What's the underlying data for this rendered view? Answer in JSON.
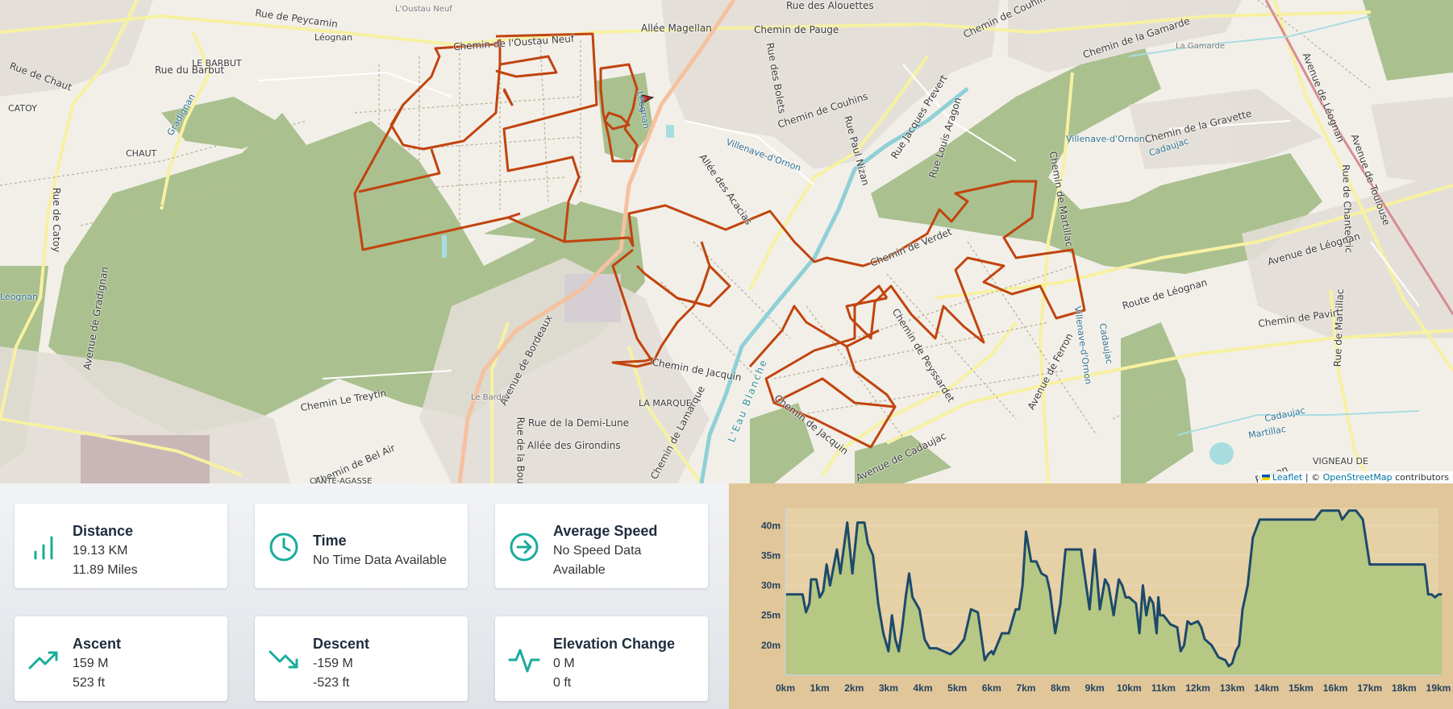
{
  "map": {
    "attribution_leaflet": "Leaflet",
    "attribution_sep": " | © ",
    "attribution_osm": "OpenStreetMap",
    "attribution_tail": " contributors",
    "labels": [
      "Rue de Peycamin",
      "Léognan",
      "Chemin de l'Oustau Neuf",
      "Allée Magellan",
      "Rue des Alouettes",
      "Chemin de Pauge",
      "Chemin de Couhins",
      "Chemin de la Gamarde",
      "La Gamarde",
      "Rue du Barbut",
      "LE BARBUT",
      "Rue de Chaut",
      "CATOY",
      "CHAUT",
      "Gradignan",
      "Rue de Catoy",
      "Rue des Bolets",
      "Chemin de Couhins",
      "Rue Jacques Prevert",
      "Rue Paul Nizan",
      "Rue Louis Aragon",
      "Villenave-d'Ornon",
      "Allée des Acacias",
      "Chemin de Martillac",
      "Villenave-d'Ornon",
      "Chemin de la Gravette",
      "Cadaujac",
      "Avenue de Léognan",
      "Avenue de Toulouse",
      "Rue de Chantecric",
      "Chemin de Verdet",
      "Avenue de Léognan",
      "Route de Léognan",
      "Chemin de Pavin",
      "Rue de Martillac",
      "Avenue de Gradignan",
      "Avenue de Bordeaux",
      "Chemin de Jacquin",
      "Chemin de Peyssardet",
      "Avenue de Ferron",
      "Villenave-d'Ornon",
      "Cadaujac",
      "L'Eau Blanche",
      "Chemin de Jacquin",
      "LA MARQUE",
      "Chemin de Lamarque",
      "Rue de la Demi-Lune",
      "Allée des Girondins",
      "Chemin Le Treytin",
      "Chemin de Bel Air",
      "Avenue de Cadaujac",
      "Cadaujac",
      "Martillac",
      "VIGNEAU DE",
      "Ramon",
      "Léognan",
      "Rue de la Bouh",
      "L'Oustau Neuf",
      "Léognan",
      "Le Barde",
      "CANTE-AGASSE"
    ]
  },
  "stats": [
    {
      "title": "Distance",
      "line1": "19.13 KM",
      "line2": "11.89 Miles",
      "icon": "bar-chart-icon"
    },
    {
      "title": "Time",
      "line1": "No Time Data Available",
      "line2": "",
      "icon": "clock-icon"
    },
    {
      "title": "Average Speed",
      "line1": "No Speed Data",
      "line2": "Available",
      "icon": "arrow-circle-icon"
    },
    {
      "title": "Ascent",
      "line1": "159 M",
      "line2": "523 ft",
      "icon": "trending-up-icon"
    },
    {
      "title": "Descent",
      "line1": "-159 M",
      "line2": "-523 ft",
      "icon": "trending-down-icon"
    },
    {
      "title": "Elevation Change",
      "line1": "0 M",
      "line2": "0 ft",
      "icon": "activity-icon"
    }
  ],
  "colors": {
    "accent": "#1aab9b",
    "route": "#c1440e",
    "elevation_fill": "#b7c784",
    "elevation_line": "#1c4a6b",
    "elevation_bg": "#e0c699"
  },
  "chart_data": {
    "type": "area",
    "title": "",
    "xlabel": "",
    "ylabel": "",
    "xlim": [
      0,
      19
    ],
    "ylim": [
      15,
      43
    ],
    "x_ticks": [
      "0km",
      "1km",
      "2km",
      "3km",
      "4km",
      "5km",
      "6km",
      "7km",
      "8km",
      "9km",
      "10km",
      "11km",
      "12km",
      "13km",
      "14km",
      "15km",
      "16km",
      "17km",
      "18km",
      "19km"
    ],
    "y_ticks": [
      "20m",
      "25m",
      "30m",
      "35m",
      "40m"
    ],
    "grid": true,
    "x": [
      0,
      0.5,
      0.6,
      0.7,
      0.75,
      0.9,
      1.0,
      1.1,
      1.2,
      1.3,
      1.4,
      1.5,
      1.6,
      1.8,
      1.95,
      2.1,
      2.2,
      2.3,
      2.4,
      2.55,
      2.7,
      2.85,
      3.0,
      3.1,
      3.2,
      3.3,
      3.4,
      3.5,
      3.6,
      3.7,
      3.9,
      4.05,
      4.2,
      4.4,
      4.6,
      4.8,
      5.0,
      5.2,
      5.4,
      5.6,
      5.8,
      5.9,
      6.0,
      6.05,
      6.3,
      6.5,
      6.7,
      6.8,
      6.9,
      7.0,
      7.15,
      7.3,
      7.45,
      7.6,
      7.7,
      7.85,
      8.0,
      8.15,
      8.3,
      8.4,
      8.6,
      8.85,
      9.0,
      9.15,
      9.3,
      9.4,
      9.55,
      9.7,
      9.8,
      9.9,
      10.0,
      10.2,
      10.3,
      10.4,
      10.5,
      10.6,
      10.7,
      10.8,
      10.85,
      10.9,
      11.0,
      11.2,
      11.4,
      11.5,
      11.6,
      11.7,
      11.8,
      12.0,
      12.1,
      12.2,
      12.4,
      12.6,
      12.8,
      12.9,
      13.0,
      13.1,
      13.2,
      13.3,
      13.45,
      13.6,
      13.8,
      14.0,
      14.2,
      14.4,
      14.6,
      14.8,
      15.0,
      15.2,
      15.4,
      15.6,
      15.8,
      16.0,
      16.1,
      16.2,
      16.4,
      16.6,
      16.8,
      17.0,
      17.2,
      17.4,
      17.6,
      17.8,
      18.0,
      18.2,
      18.4,
      18.6,
      18.7,
      18.8,
      18.9,
      19.0,
      19.1
    ],
    "y": [
      28.5,
      28.5,
      25.5,
      27,
      31,
      31,
      28,
      29,
      33.5,
      30,
      33,
      36,
      32,
      40.5,
      32,
      40.5,
      40.5,
      40.5,
      37,
      35,
      27,
      22,
      19,
      25,
      21,
      19,
      23,
      28,
      32,
      28,
      26,
      21,
      19.5,
      19.5,
      19,
      18.5,
      19.5,
      21,
      26,
      25.5,
      17.5,
      18.5,
      19,
      18.5,
      22,
      22,
      26,
      26,
      30,
      39,
      34,
      34,
      32,
      31.5,
      29,
      22,
      27,
      36,
      36,
      36,
      36,
      26,
      36,
      26,
      31,
      30,
      25,
      31,
      30,
      28,
      28,
      27,
      22,
      30,
      25,
      28,
      27,
      22,
      28,
      25,
      25,
      23.5,
      23,
      19,
      20,
      24,
      23.5,
      24,
      23,
      21,
      20,
      18,
      17.5,
      16.5,
      17,
      19,
      20,
      26,
      30,
      38,
      41,
      41,
      41,
      41,
      41,
      41,
      41,
      41,
      41,
      42.5,
      42.5,
      42.5,
      42.5,
      41,
      42.5,
      42.5,
      41,
      33.5,
      33.5,
      33.5,
      33.5,
      33.5,
      33.5,
      33.5,
      33.5,
      33.5,
      28.5,
      28.5,
      28,
      28.5,
      28.5
    ]
  }
}
